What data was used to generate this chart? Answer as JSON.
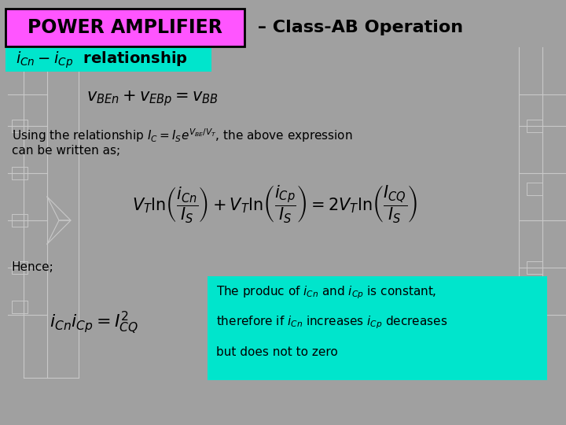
{
  "bg_color": "#a0a0a0",
  "title_box_color": "#ff55ff",
  "title_box_text": "POWER AMPLIFIER",
  "title_suffix": " – Class-AB Operation",
  "subtitle_box_color": "#00e5cc",
  "subtitle_text": "$i_{Cn} - i_{Cp}$  relationship",
  "eq1": "$v_{BEn} + v_{EBp} = v_{BB}$",
  "text1": "Using the relationship $I_C = I_S e^{V_{BE}/V_T}$, the above expression",
  "text2": "can be written as;",
  "eq2": "$V_T \\ln\\!\\left(\\dfrac{i_{Cn}}{I_S}\\right) + V_T \\ln\\!\\left(\\dfrac{i_{Cp}}{I_S}\\right) = 2V_T \\ln\\!\\left(\\dfrac{I_{CQ}}{I_S}\\right)$",
  "text3": "Hence;",
  "eq3": "$i_{Cn} i_{Cp} = I_{CQ}^2$",
  "info_box_color": "#00e5cc",
  "info_line1": "The produc of $i_{Cn}$ and $i_{Cp}$ is constant,",
  "info_line2": "therefore if $i_{Cn}$ increases $i_{Cp}$ decreases",
  "info_line3": "but does not to zero",
  "title_fontsize": 17,
  "title_suffix_fontsize": 16,
  "subtitle_fontsize": 14,
  "eq1_fontsize": 13,
  "eq2_fontsize": 12,
  "eq3_fontsize": 13,
  "body_fontsize": 11,
  "info_fontsize": 11,
  "circuit_line_color": "#c8c8c8"
}
